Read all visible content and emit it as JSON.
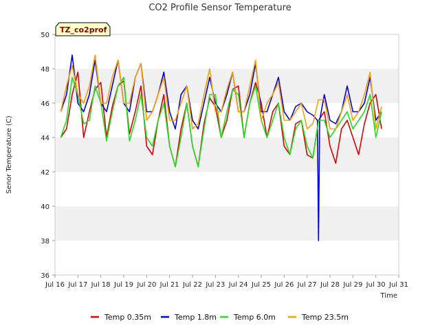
{
  "chart_data": {
    "type": "line",
    "title": "CO2 Profile Sensor Temperature",
    "xlabel": "Time",
    "ylabel": "Senor Temperature (C)",
    "ylim": [
      36,
      50
    ],
    "yticks": [
      36,
      38,
      40,
      42,
      44,
      46,
      48,
      50
    ],
    "xlim": [
      16,
      31
    ],
    "xticks": [
      {
        "x": 16,
        "label": "Jul 16"
      },
      {
        "x": 17,
        "label": "Jul 17"
      },
      {
        "x": 18,
        "label": "Jul 18"
      },
      {
        "x": 19,
        "label": "Jul 19"
      },
      {
        "x": 20,
        "label": "Jul 20"
      },
      {
        "x": 21,
        "label": "Jul 21"
      },
      {
        "x": 22,
        "label": "Jul 22"
      },
      {
        "x": 23,
        "label": "Jul 23"
      },
      {
        "x": 24,
        "label": "Jul 24"
      },
      {
        "x": 25,
        "label": "Jul 25"
      },
      {
        "x": 26,
        "label": "Jul 26"
      },
      {
        "x": 27,
        "label": "Jul 27"
      },
      {
        "x": 28,
        "label": "Jul 28"
      },
      {
        "x": 29,
        "label": "Jul 29"
      },
      {
        "x": 30,
        "label": "Jul 30"
      },
      {
        "x": 31,
        "label": "Jul 31"
      }
    ],
    "grid": "horizontal bands",
    "legend_position": "bottom",
    "site_tag": "TZ_co2prof",
    "series": [
      {
        "name": "Temp 0.35m",
        "color": "#dd0000",
        "x": [
          16.25,
          16.5,
          16.75,
          17.0,
          17.25,
          17.5,
          17.75,
          18.0,
          18.25,
          18.5,
          18.75,
          19.0,
          19.25,
          19.5,
          19.75,
          20.0,
          20.25,
          20.5,
          20.75,
          21.0,
          21.25,
          21.5,
          21.75,
          22.0,
          22.25,
          22.5,
          22.75,
          23.0,
          23.25,
          23.5,
          23.75,
          24.0,
          24.25,
          24.5,
          24.75,
          25.0,
          25.25,
          25.5,
          25.75,
          26.0,
          26.25,
          26.5,
          26.75,
          27.0,
          27.25,
          27.5,
          27.75,
          28.0,
          28.25,
          28.5,
          28.75,
          29.0,
          29.25,
          29.5,
          29.75,
          30.0,
          30.25
        ],
        "y": [
          44.0,
          44.5,
          46.5,
          47.8,
          44.0,
          45.5,
          46.8,
          47.2,
          44.0,
          45.8,
          47.0,
          47.3,
          44.2,
          45.5,
          47.0,
          43.5,
          43.0,
          45.0,
          46.5,
          43.5,
          42.3,
          44.5,
          46.0,
          43.5,
          42.3,
          44.8,
          46.3,
          45.8,
          44.0,
          45.0,
          46.8,
          47.0,
          44.0,
          46.0,
          47.2,
          46.0,
          44.0,
          45.5,
          46.0,
          43.5,
          43.0,
          44.8,
          45.0,
          43.0,
          42.8,
          45.0,
          45.5,
          43.5,
          42.5,
          44.5,
          45.0,
          44.0,
          43.0,
          44.8,
          46.0,
          46.5,
          44.5
        ]
      },
      {
        "name": "Temp 1.8m",
        "color": "#0000dd",
        "x": [
          16.25,
          16.5,
          16.75,
          17.0,
          17.25,
          17.5,
          17.75,
          18.0,
          18.25,
          18.5,
          18.75,
          19.0,
          19.25,
          19.5,
          19.75,
          20.0,
          20.25,
          20.5,
          20.75,
          21.0,
          21.25,
          21.5,
          21.75,
          22.0,
          22.25,
          22.5,
          22.75,
          23.0,
          23.25,
          23.5,
          23.75,
          24.0,
          24.25,
          24.5,
          24.75,
          25.0,
          25.25,
          25.5,
          25.75,
          26.0,
          26.25,
          26.5,
          26.75,
          27.0,
          27.25,
          27.45,
          27.5,
          27.55,
          27.75,
          28.0,
          28.25,
          28.5,
          28.75,
          29.0,
          29.25,
          29.5,
          29.75,
          30.0,
          30.25
        ],
        "y": [
          45.5,
          46.5,
          48.8,
          46.0,
          45.5,
          46.5,
          48.5,
          46.0,
          45.5,
          47.0,
          48.5,
          46.0,
          45.5,
          47.5,
          48.3,
          45.5,
          45.5,
          46.5,
          47.8,
          45.5,
          44.5,
          46.5,
          47.0,
          45.0,
          44.5,
          46.0,
          47.5,
          46.0,
          45.5,
          46.5,
          47.8,
          45.5,
          45.5,
          46.5,
          48.3,
          45.5,
          45.5,
          46.5,
          47.5,
          45.5,
          45.0,
          45.8,
          46.0,
          45.5,
          45.3,
          45.0,
          38.0,
          45.0,
          46.5,
          45.0,
          44.8,
          45.5,
          47.0,
          45.5,
          45.5,
          46.0,
          47.5,
          45.0,
          45.5
        ]
      },
      {
        "name": "Temp 6.0m",
        "color": "#22dd22",
        "x": [
          16.25,
          16.5,
          16.75,
          17.0,
          17.25,
          17.5,
          17.75,
          18.0,
          18.25,
          18.5,
          18.75,
          19.0,
          19.25,
          19.5,
          19.75,
          20.0,
          20.25,
          20.5,
          20.75,
          21.0,
          21.25,
          21.5,
          21.75,
          22.0,
          22.25,
          22.5,
          22.75,
          23.0,
          23.25,
          23.5,
          23.75,
          24.0,
          24.25,
          24.5,
          24.75,
          25.0,
          25.25,
          25.5,
          25.75,
          26.0,
          26.25,
          26.5,
          26.75,
          27.0,
          27.25,
          27.5,
          27.75,
          28.0,
          28.25,
          28.5,
          28.75,
          29.0,
          29.25,
          29.5,
          29.75,
          30.0,
          30.25
        ],
        "y": [
          44.0,
          45.0,
          47.5,
          46.5,
          44.8,
          45.0,
          47.0,
          46.0,
          43.8,
          45.5,
          47.0,
          47.5,
          43.8,
          45.0,
          46.5,
          44.0,
          43.5,
          45.0,
          46.0,
          43.5,
          42.3,
          44.0,
          46.0,
          43.5,
          42.3,
          44.5,
          46.5,
          46.5,
          44.0,
          45.5,
          46.8,
          46.5,
          44.0,
          46.0,
          47.0,
          45.0,
          44.0,
          45.0,
          46.0,
          44.0,
          43.0,
          44.5,
          45.0,
          43.5,
          42.8,
          45.0,
          45.0,
          44.0,
          44.5,
          45.0,
          45.5,
          44.5,
          45.0,
          45.5,
          46.5,
          44.0,
          45.5
        ]
      },
      {
        "name": "Temp 23.5m",
        "color": "#f5a000",
        "x": [
          16.25,
          16.5,
          16.75,
          17.0,
          17.25,
          17.5,
          17.75,
          18.0,
          18.25,
          18.5,
          18.75,
          19.0,
          19.25,
          19.5,
          19.75,
          20.0,
          20.25,
          20.5,
          20.75,
          21.0,
          21.25,
          21.5,
          21.75,
          22.0,
          22.25,
          22.5,
          22.75,
          23.0,
          23.25,
          23.5,
          23.75,
          24.0,
          24.25,
          24.5,
          24.75,
          25.0,
          25.25,
          25.5,
          25.75,
          26.0,
          26.25,
          26.5,
          26.75,
          27.0,
          27.25,
          27.5,
          27.75,
          28.0,
          28.25,
          28.5,
          28.75,
          29.0,
          29.25,
          29.5,
          29.75,
          30.0,
          30.25
        ],
        "y": [
          45.5,
          47.0,
          48.2,
          46.5,
          46.0,
          47.0,
          48.8,
          46.0,
          46.0,
          47.5,
          48.5,
          46.0,
          46.0,
          47.5,
          48.3,
          45.0,
          45.5,
          46.5,
          47.5,
          45.0,
          45.0,
          46.0,
          47.0,
          44.5,
          44.8,
          46.5,
          48.0,
          45.5,
          45.5,
          46.8,
          47.8,
          45.5,
          45.5,
          47.0,
          48.5,
          45.0,
          46.0,
          46.5,
          47.2,
          45.0,
          45.0,
          45.5,
          46.0,
          44.5,
          44.8,
          46.2,
          46.2,
          44.5,
          44.5,
          45.5,
          46.5,
          45.0,
          45.5,
          46.5,
          47.8,
          44.5,
          45.8
        ]
      }
    ]
  }
}
